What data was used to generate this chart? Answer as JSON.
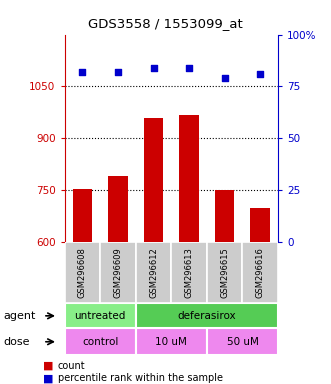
{
  "title": "GDS3558 / 1553099_at",
  "samples": [
    "GSM296608",
    "GSM296609",
    "GSM296612",
    "GSM296613",
    "GSM296615",
    "GSM296616"
  ],
  "bar_values": [
    752,
    790,
    958,
    968,
    750,
    698
  ],
  "scatter_values": [
    82,
    82,
    84,
    84,
    79,
    81
  ],
  "ylim_left": [
    600,
    1200
  ],
  "ylim_right": [
    0,
    100
  ],
  "yticks_left": [
    600,
    750,
    900,
    1050
  ],
  "yticks_right": [
    0,
    25,
    50,
    75,
    100
  ],
  "bar_color": "#cc0000",
  "scatter_color": "#0000cc",
  "bar_bottom": 600,
  "agent_untreated_color": "#88ee88",
  "agent_deferasirox_color": "#55cc55",
  "dose_color": "#ee88ee",
  "left_axis_color": "#cc0000",
  "right_axis_color": "#0000cc",
  "dotted_line_values": [
    750,
    900,
    1050
  ],
  "gray_box_color": "#cccccc",
  "background_color": "#ffffff"
}
